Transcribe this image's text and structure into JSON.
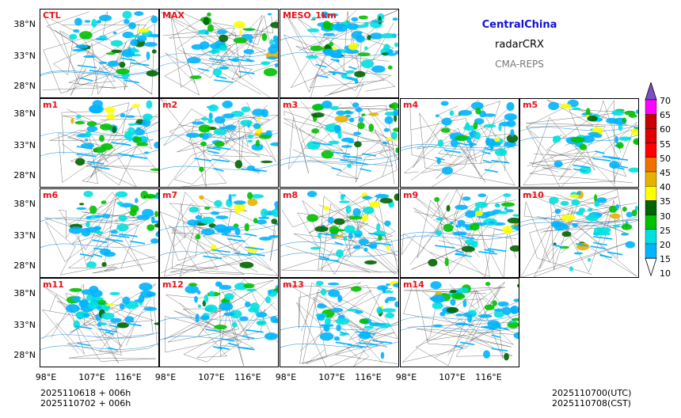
{
  "header": {
    "region": "CentralChina",
    "variable": "radarCRX",
    "system": "CMA-REPS"
  },
  "panels": [
    "CTL",
    "MAX",
    "MESO_1km",
    "m1",
    "m2",
    "m3",
    "m4",
    "m5",
    "m6",
    "m7",
    "m8",
    "m9",
    "m10",
    "m11",
    "m12",
    "m13",
    "m14"
  ],
  "axes": {
    "lat_labels": [
      "38°N",
      "33°N",
      "28°N"
    ],
    "lon_labels": [
      "98°E",
      "107°E",
      "116°E"
    ]
  },
  "colorbar": {
    "levels": [
      "70",
      "65",
      "60",
      "55",
      "50",
      "45",
      "40",
      "35",
      "30",
      "25",
      "20",
      "15",
      "10"
    ],
    "colors": [
      "#7b4fc9",
      "#ff00ff",
      "#c80000",
      "#e00000",
      "#ff0000",
      "#f07000",
      "#e8b000",
      "#ffff00",
      "#006400",
      "#00c000",
      "#00e0e0",
      "#00b4ff",
      "#ffffff"
    ]
  },
  "footer": {
    "init_utc": "2025110618  +  006h",
    "init_cst": "2025110702  +  006h",
    "valid_utc": "2025110700(UTC)",
    "valid_cst": "2025110708(CST)"
  }
}
